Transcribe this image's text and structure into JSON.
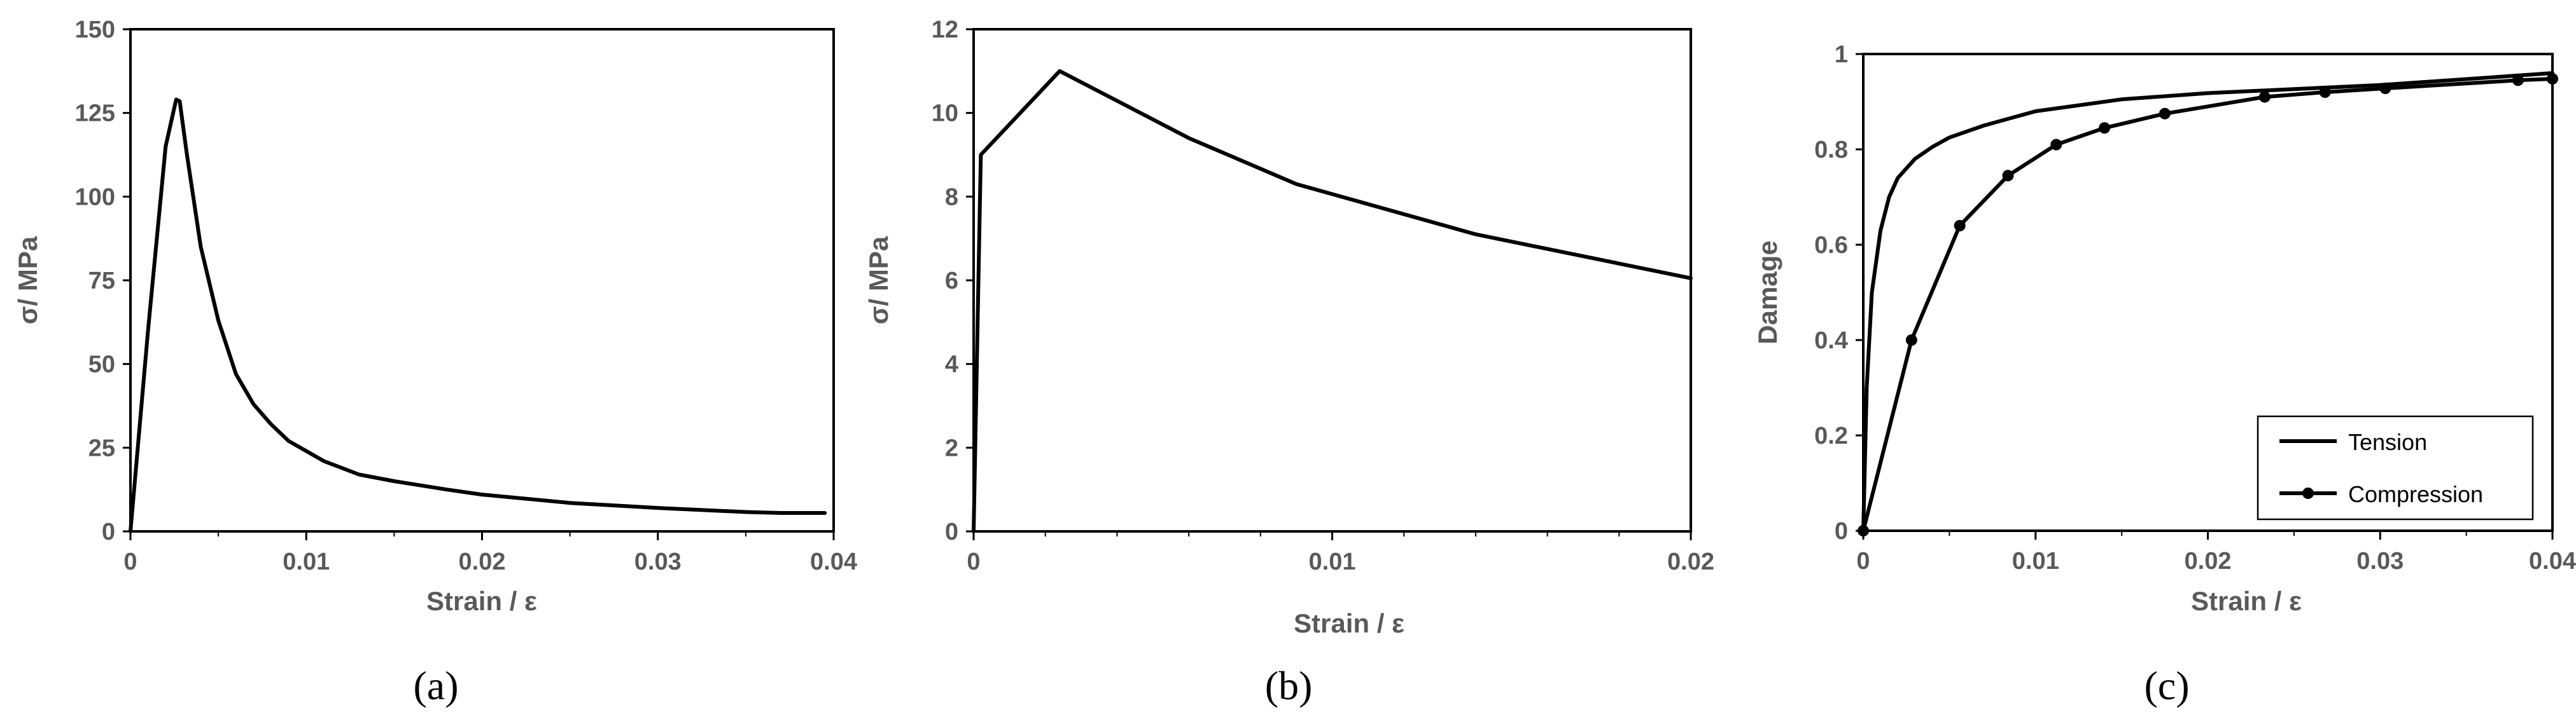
{
  "panels": [
    {
      "label": "(a)"
    },
    {
      "label": "(b)"
    },
    {
      "label": "(c)"
    }
  ],
  "chart_data": [
    {
      "type": "line",
      "title": "",
      "xlabel": "Strain / ε",
      "ylabel": "σ/ MPa",
      "xlim": [
        0,
        0.04
      ],
      "ylim": [
        0,
        150
      ],
      "xticks": [
        0,
        0.01,
        0.02,
        0.03,
        0.04
      ],
      "xtick_labels": [
        "0",
        "0.01",
        "0.02",
        "0.03",
        "0.04"
      ],
      "yticks": [
        0,
        25,
        50,
        75,
        100,
        125,
        150
      ],
      "ytick_labels": [
        "0",
        "25",
        "50",
        "75",
        "100",
        "125",
        "150"
      ],
      "grid": false,
      "series": [
        {
          "x": [
            0,
            0.001,
            0.002,
            0.0026,
            0.0028,
            0.0032,
            0.004,
            0.005,
            0.006,
            0.007,
            0.008,
            0.009,
            0.01,
            0.011,
            0.013,
            0.015,
            0.018,
            0.02,
            0.025,
            0.03,
            0.035,
            0.037,
            0.0395
          ],
          "y": [
            0,
            60,
            115,
            129,
            128.5,
            113,
            85,
            63,
            47,
            38,
            32,
            27,
            24,
            21,
            17,
            15,
            12.5,
            11,
            8.5,
            7,
            5.8,
            5.5,
            5.5
          ]
        }
      ]
    },
    {
      "type": "line",
      "title": "",
      "xlabel": "Strain / ε",
      "ylabel": "σ/ MPa",
      "xlim": [
        0,
        0.02
      ],
      "ylim": [
        0,
        12
      ],
      "xticks": [
        0,
        0.01,
        0.02
      ],
      "xtick_labels": [
        "0",
        "0.01",
        "0.02"
      ],
      "yticks": [
        0,
        2,
        4,
        6,
        8,
        10,
        12
      ],
      "ytick_labels": [
        "0",
        "2",
        "4",
        "6",
        "8",
        "10",
        "12"
      ],
      "grid": false,
      "series": [
        {
          "x": [
            0,
            0.0002,
            0.0024,
            0.006,
            0.009,
            0.014,
            0.02
          ],
          "y": [
            0,
            9.0,
            11.0,
            9.4,
            8.3,
            7.1,
            6.05
          ]
        }
      ]
    },
    {
      "type": "line",
      "title": "",
      "xlabel": "Strain / ε",
      "ylabel": "Damage",
      "xlim": [
        0,
        0.04
      ],
      "ylim": [
        0,
        1
      ],
      "xticks": [
        0,
        0.01,
        0.02,
        0.03,
        0.04
      ],
      "xtick_labels": [
        "0",
        "0.01",
        "0.02",
        "0.03",
        "0.04"
      ],
      "yticks": [
        0,
        0.2,
        0.4,
        0.6,
        0.8,
        1
      ],
      "ytick_labels": [
        "0",
        "0.2",
        "0.4",
        "0.6",
        "0.8",
        "1"
      ],
      "grid": false,
      "legend": "bottom-right",
      "series": [
        {
          "name": "Tension",
          "marker": false,
          "x": [
            0,
            0.0002,
            0.0005,
            0.001,
            0.0015,
            0.002,
            0.003,
            0.004,
            0.005,
            0.007,
            0.01,
            0.015,
            0.02,
            0.03,
            0.04
          ],
          "y": [
            0,
            0.3,
            0.5,
            0.63,
            0.7,
            0.74,
            0.78,
            0.805,
            0.825,
            0.85,
            0.88,
            0.905,
            0.918,
            0.935,
            0.96
          ]
        },
        {
          "name": "Compression",
          "marker": true,
          "x": [
            0,
            0.0028,
            0.0056,
            0.0084,
            0.0112,
            0.014,
            0.0175,
            0.0233,
            0.0268,
            0.0303,
            0.038,
            0.04
          ],
          "y": [
            0,
            0.4,
            0.64,
            0.745,
            0.81,
            0.845,
            0.875,
            0.91,
            0.92,
            0.928,
            0.945,
            0.948
          ]
        }
      ]
    }
  ]
}
